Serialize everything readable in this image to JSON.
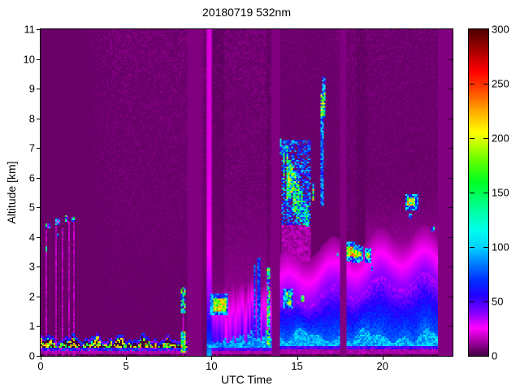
{
  "chart_data": {
    "type": "heatmap",
    "title": "20180719 532nm",
    "xlabel": "UTC Time",
    "ylabel": "Altitude [km]",
    "xlim": [
      0,
      24.1
    ],
    "ylim": [
      0,
      11
    ],
    "x_ticks": [
      0,
      5,
      10,
      15,
      20
    ],
    "y_ticks": [
      0,
      1,
      2,
      3,
      4,
      5,
      6,
      7,
      8,
      9,
      10,
      11
    ],
    "grid": false,
    "legend": "none",
    "colorbar": {
      "min": 0,
      "max": 300,
      "ticks": [
        0,
        50,
        100,
        150,
        200,
        250,
        300
      ],
      "stops": [
        [
          0,
          "#400040"
        ],
        [
          12,
          "#a000a0"
        ],
        [
          25,
          "#ff00ff"
        ],
        [
          40,
          "#8000ff"
        ],
        [
          55,
          "#2200ff"
        ],
        [
          70,
          "#0033ff"
        ],
        [
          85,
          "#0080ff"
        ],
        [
          100,
          "#00d4ff"
        ],
        [
          115,
          "#00ffee"
        ],
        [
          135,
          "#00ff99"
        ],
        [
          160,
          "#00ff22"
        ],
        [
          180,
          "#66ff00"
        ],
        [
          205,
          "#ffff00"
        ],
        [
          225,
          "#ffaa00"
        ],
        [
          245,
          "#ff4400"
        ],
        [
          262,
          "#ff0000"
        ],
        [
          282,
          "#a00000"
        ],
        [
          300,
          "#500000"
        ]
      ]
    },
    "features": {
      "no_data_after": 23.2,
      "gap_value": 8,
      "gaps": [
        [
          8.62,
          9.42
        ],
        [
          13.55,
          13.97
        ],
        [
          17.52,
          17.88
        ]
      ],
      "quiet_until": 2.3,
      "noise": {
        "base": 5,
        "ramp_end": 4.2,
        "amp_day": 1.0,
        "amp_mid": 0.55,
        "amp_late": 0.8,
        "mid_start": 13.5,
        "late_start": 17.2
      },
      "boundary_layer": {
        "t_end": 8.62,
        "top_base": 0.48
      },
      "plume_region": {
        "t0": 9.7,
        "t1": 13.55
      },
      "blue_region": {
        "t0": 13.97,
        "t1": 23.2
      },
      "surge_column": [
        9.72,
        9.98
      ],
      "clouds": [
        [
          0.33,
          0.57,
          4.28,
          4.47,
          0.8,
          90,
          230,
          0
        ],
        [
          0.86,
          1.12,
          4.42,
          4.62,
          0.8,
          90,
          230,
          0
        ],
        [
          0.95,
          1.08,
          4.0,
          4.15,
          0.55,
          90,
          180,
          0
        ],
        [
          1.43,
          1.58,
          4.52,
          4.72,
          0.8,
          100,
          240,
          0
        ],
        [
          1.81,
          2.0,
          4.5,
          4.68,
          0.8,
          100,
          240,
          0
        ],
        [
          0.24,
          0.38,
          3.5,
          3.68,
          0.55,
          90,
          200,
          0
        ],
        [
          8.22,
          8.52,
          0.12,
          0.85,
          0.9,
          150,
          300,
          0
        ],
        [
          8.22,
          8.5,
          1.45,
          2.3,
          0.3,
          120,
          280,
          0
        ],
        [
          10.05,
          10.85,
          1.5,
          1.95,
          0.92,
          190,
          300,
          1
        ],
        [
          12.45,
          12.56,
          0.4,
          3.1,
          0.7,
          70,
          115,
          0
        ],
        [
          12.7,
          12.82,
          0.4,
          3.3,
          0.7,
          70,
          115,
          0
        ],
        [
          13.25,
          13.47,
          0.35,
          2.95,
          0.8,
          110,
          300,
          0
        ],
        [
          14.35,
          14.68,
          1.72,
          2.12,
          0.55,
          130,
          300,
          1
        ],
        [
          15.28,
          15.47,
          1.82,
          2.06,
          0.65,
          170,
          300,
          0
        ],
        [
          14.03,
          14.14,
          6.75,
          7.3,
          0.7,
          100,
          220,
          0
        ],
        [
          14.18,
          14.32,
          5.55,
          6.95,
          0.75,
          110,
          260,
          0
        ],
        [
          14.34,
          14.5,
          5.15,
          7.1,
          0.8,
          120,
          280,
          0
        ],
        [
          14.5,
          14.66,
          5.35,
          6.6,
          0.9,
          150,
          300,
          0
        ],
        [
          14.63,
          14.8,
          5.5,
          6.45,
          0.9,
          150,
          300,
          0
        ],
        [
          14.8,
          14.97,
          4.85,
          6.2,
          0.85,
          130,
          290,
          0
        ],
        [
          14.96,
          15.12,
          4.6,
          5.9,
          0.8,
          120,
          270,
          0
        ],
        [
          15.12,
          15.3,
          4.5,
          5.6,
          0.75,
          110,
          250,
          0
        ],
        [
          15.36,
          15.52,
          4.42,
          5.2,
          0.7,
          100,
          230,
          0
        ],
        [
          15.56,
          15.72,
          4.35,
          5.05,
          0.7,
          110,
          240,
          0
        ],
        [
          15.9,
          16.02,
          5.25,
          5.85,
          0.8,
          150,
          300,
          0
        ],
        [
          14.1,
          15.85,
          4.4,
          7.25,
          0.15,
          75,
          130,
          0
        ],
        [
          14.1,
          15.8,
          3.2,
          4.4,
          0.5,
          14,
          26,
          0
        ],
        [
          16.38,
          16.62,
          5.05,
          8.05,
          0.7,
          80,
          140,
          0
        ],
        [
          16.42,
          16.66,
          8.05,
          8.85,
          0.85,
          130,
          300,
          0
        ],
        [
          16.45,
          16.7,
          8.85,
          9.4,
          0.45,
          80,
          160,
          0
        ],
        [
          17.93,
          18.25,
          3.35,
          3.68,
          0.9,
          200,
          300,
          1
        ],
        [
          18.3,
          18.56,
          3.3,
          3.58,
          0.9,
          200,
          300,
          1
        ],
        [
          18.6,
          18.78,
          3.33,
          3.52,
          0.8,
          180,
          300,
          1
        ],
        [
          19.05,
          19.22,
          3.28,
          3.46,
          0.75,
          180,
          300,
          1
        ],
        [
          17.3,
          17.42,
          3.33,
          3.45,
          0.5,
          100,
          200,
          0
        ],
        [
          19.3,
          19.42,
          2.88,
          3.0,
          0.4,
          100,
          200,
          0
        ],
        [
          21.48,
          21.95,
          5.05,
          5.32,
          0.85,
          180,
          300,
          1
        ],
        [
          21.55,
          21.68,
          4.62,
          4.78,
          0.5,
          100,
          220,
          0
        ],
        [
          22.85,
          23.05,
          4.18,
          4.35,
          0.5,
          90,
          200,
          0
        ]
      ],
      "hairlines": [
        [
          0.37,
          4.25
        ],
        [
          0.95,
          4.4
        ],
        [
          1.28,
          4.3
        ],
        [
          1.62,
          4.5
        ],
        [
          1.98,
          4.5
        ],
        [
          8.35,
          1.45
        ],
        [
          10.3,
          1.5
        ]
      ],
      "shadows": [
        [
          10.08,
          10.8,
          2.0,
          0.75
        ],
        [
          13.27,
          13.45,
          3.0,
          0.8
        ],
        [
          18.5,
          19.05,
          3.8,
          0.82
        ]
      ]
    }
  },
  "figure": {
    "background": "#ffffff",
    "axis_color": "#000000"
  }
}
